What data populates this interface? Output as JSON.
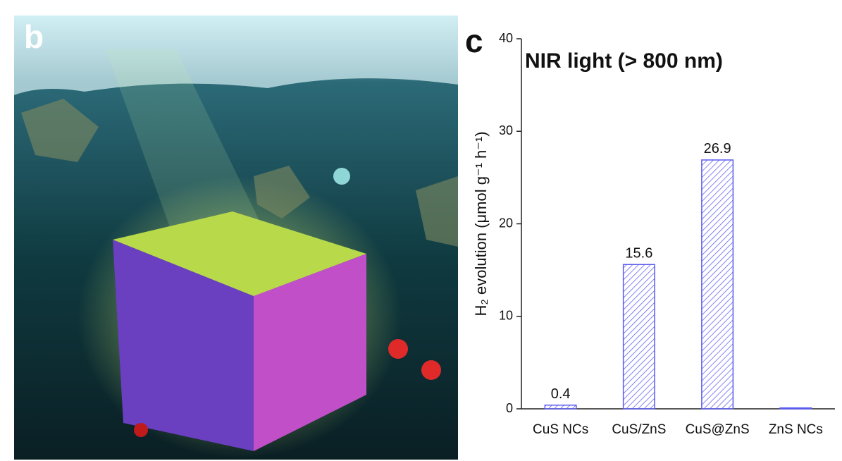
{
  "illustration": {
    "label": "b"
  },
  "chart_data": {
    "type": "bar",
    "panel_label": "c",
    "title": "NIR light (> 800 nm)",
    "y_label": "H₂ evolution (μmol g⁻¹ h⁻¹)",
    "categories": [
      "CuS NCs",
      "CuS/ZnS",
      "CuS@ZnS",
      "ZnS NCs"
    ],
    "values": [
      0.4,
      15.6,
      26.9,
      0.1
    ],
    "value_labels": [
      "0.4",
      "15.6",
      "26.9",
      null
    ],
    "color": "#5b5bf0",
    "ylim": [
      0,
      40
    ],
    "yticks": [
      0,
      10,
      20,
      30,
      40
    ],
    "grid": false
  }
}
